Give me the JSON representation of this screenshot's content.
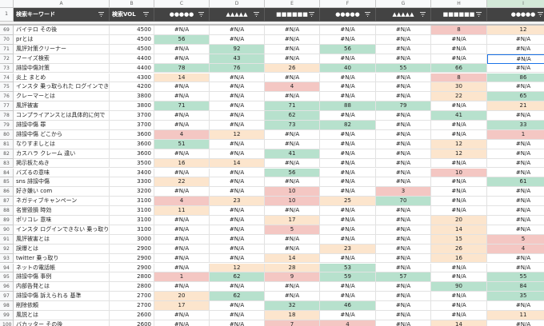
{
  "columns": [
    "A",
    "B",
    "C",
    "D",
    "E",
    "F",
    "G",
    "H",
    "I"
  ],
  "header": {
    "row": 1,
    "cells": [
      "検索キーワード",
      "検索VOL",
      "●●●●●",
      "▲▲▲▲▲",
      "■■■■■■",
      "●●●●●",
      "▲▲▲▲▲",
      "■■■■■■",
      "●●●●●"
    ]
  },
  "rows": [
    [
      69,
      "バイテロ その後",
      4500,
      "#N/A",
      "#N/A",
      "#N/A",
      "#N/A",
      "#N/A",
      8,
      12
    ],
    [
      70,
      "prとは",
      4500,
      56,
      "#N/A",
      "#N/A",
      "#N/A",
      "#N/A",
      "#N/A",
      "#N/A"
    ],
    [
      71,
      "風評対策クリーナー",
      4500,
      "#N/A",
      92,
      "#N/A",
      56,
      "#N/A",
      "#N/A",
      "#N/A"
    ],
    [
      72,
      "フーイズ検索",
      4400,
      "#N/A",
      43,
      "#N/A",
      "#N/A",
      "#N/A",
      "#N/A",
      "#N/A"
    ],
    [
      73,
      "誹謗中傷対策",
      4400,
      78,
      76,
      26,
      40,
      55,
      66,
      "#N/A"
    ],
    [
      74,
      "炎上 まとめ",
      4300,
      14,
      "#N/A",
      "#N/A",
      "#N/A",
      "#N/A",
      8,
      86
    ],
    [
      75,
      "インスタ 乗っ取られた ログインでき",
      4200,
      "#N/A",
      "#N/A",
      4,
      "#N/A",
      "#N/A",
      30,
      "#N/A"
    ],
    [
      76,
      "クレーマーとは",
      3800,
      "#N/A",
      "#N/A",
      "#N/A",
      "#N/A",
      "#N/A",
      22,
      65
    ],
    [
      77,
      "風評被害",
      3800,
      71,
      "#N/A",
      71,
      88,
      79,
      "#N/A",
      21
    ],
    [
      78,
      "コンプライアンスとは具体的に何で",
      3700,
      "#N/A",
      "#N/A",
      62,
      "#N/A",
      "#N/A",
      41,
      "#N/A"
    ],
    [
      79,
      "誹謗中傷 罪",
      3700,
      "#N/A",
      "#N/A",
      73,
      82,
      "#N/A",
      "#N/A",
      33
    ],
    [
      80,
      "誹謗中傷 どこから",
      3600,
      4,
      12,
      "#N/A",
      "#N/A",
      "#N/A",
      "#N/A",
      1
    ],
    [
      81,
      "なりすましとは",
      3600,
      51,
      "#N/A",
      "#N/A",
      "#N/A",
      "#N/A",
      12,
      "#N/A"
    ],
    [
      82,
      "カスハラ クレーム 違い",
      3600,
      "#N/A",
      "#N/A",
      41,
      "#N/A",
      "#N/A",
      12,
      "#N/A"
    ],
    [
      83,
      "掲示板たぬき",
      3500,
      16,
      14,
      "#N/A",
      "#N/A",
      "#N/A",
      "#N/A",
      "#N/A"
    ],
    [
      84,
      "バズるの意味",
      3400,
      "#N/A",
      "#N/A",
      56,
      "#N/A",
      "#N/A",
      10,
      "#N/A"
    ],
    [
      85,
      "sns 誹謗中傷",
      3300,
      22,
      "#N/A",
      "#N/A",
      "#N/A",
      "#N/A",
      "#N/A",
      61
    ],
    [
      86,
      "好き嫌い com",
      3200,
      "#N/A",
      "#N/A",
      10,
      "#N/A",
      3,
      "#N/A",
      "#N/A"
    ],
    [
      87,
      "ネガティブキャンペーン",
      3100,
      4,
      23,
      10,
      25,
      70,
      "#N/A",
      "#N/A"
    ],
    [
      88,
      "名誉毀損 時効",
      3100,
      11,
      "#N/A",
      "#N/A",
      "#N/A",
      "#N/A",
      "#N/A",
      "#N/A"
    ],
    [
      89,
      "ポリコレ 意味",
      3100,
      "#N/A",
      "#N/A",
      17,
      "#N/A",
      "#N/A",
      20,
      "#N/A"
    ],
    [
      90,
      "インスタ ログインできない 乗っ取り",
      3100,
      "#N/A",
      "#N/A",
      5,
      "#N/A",
      "#N/A",
      14,
      "#N/A"
    ],
    [
      91,
      "風評被害とは",
      3000,
      "#N/A",
      "#N/A",
      "#N/A",
      "#N/A",
      "#N/A",
      15,
      5
    ],
    [
      92,
      "誤爆とは",
      2900,
      "#N/A",
      "#N/A",
      "#N/A",
      23,
      "#N/A",
      26,
      4
    ],
    [
      93,
      "twitter 乗っ取り",
      2900,
      "#N/A",
      "#N/A",
      14,
      "#N/A",
      "#N/A",
      16,
      "#N/A"
    ],
    [
      94,
      "ネットの電話帳",
      2900,
      "#N/A",
      12,
      28,
      53,
      "#N/A",
      "#N/A",
      "#N/A"
    ],
    [
      95,
      "誹謗中傷 事例",
      2800,
      1,
      62,
      9,
      59,
      57,
      "#N/A",
      55
    ],
    [
      96,
      "内部告発とは",
      2800,
      "#N/A",
      "#N/A",
      "#N/A",
      "#N/A",
      "#N/A",
      90,
      84
    ],
    [
      97,
      "誹謗中傷 訴えられる 基準",
      2700,
      20,
      62,
      "#N/A",
      "#N/A",
      "#N/A",
      "#N/A",
      35
    ],
    [
      98,
      "削除依頼",
      2700,
      17,
      "#N/A",
      32,
      46,
      "#N/A",
      "#N/A",
      "#N/A"
    ],
    [
      99,
      "風説とは",
      2600,
      "#N/A",
      "#N/A",
      18,
      "#N/A",
      "#N/A",
      "#N/A",
      11
    ],
    [
      100,
      "バカッター その後",
      2600,
      "#N/A",
      "#N/A",
      7,
      4,
      "#N/A",
      14,
      "#N/A"
    ]
  ]
}
